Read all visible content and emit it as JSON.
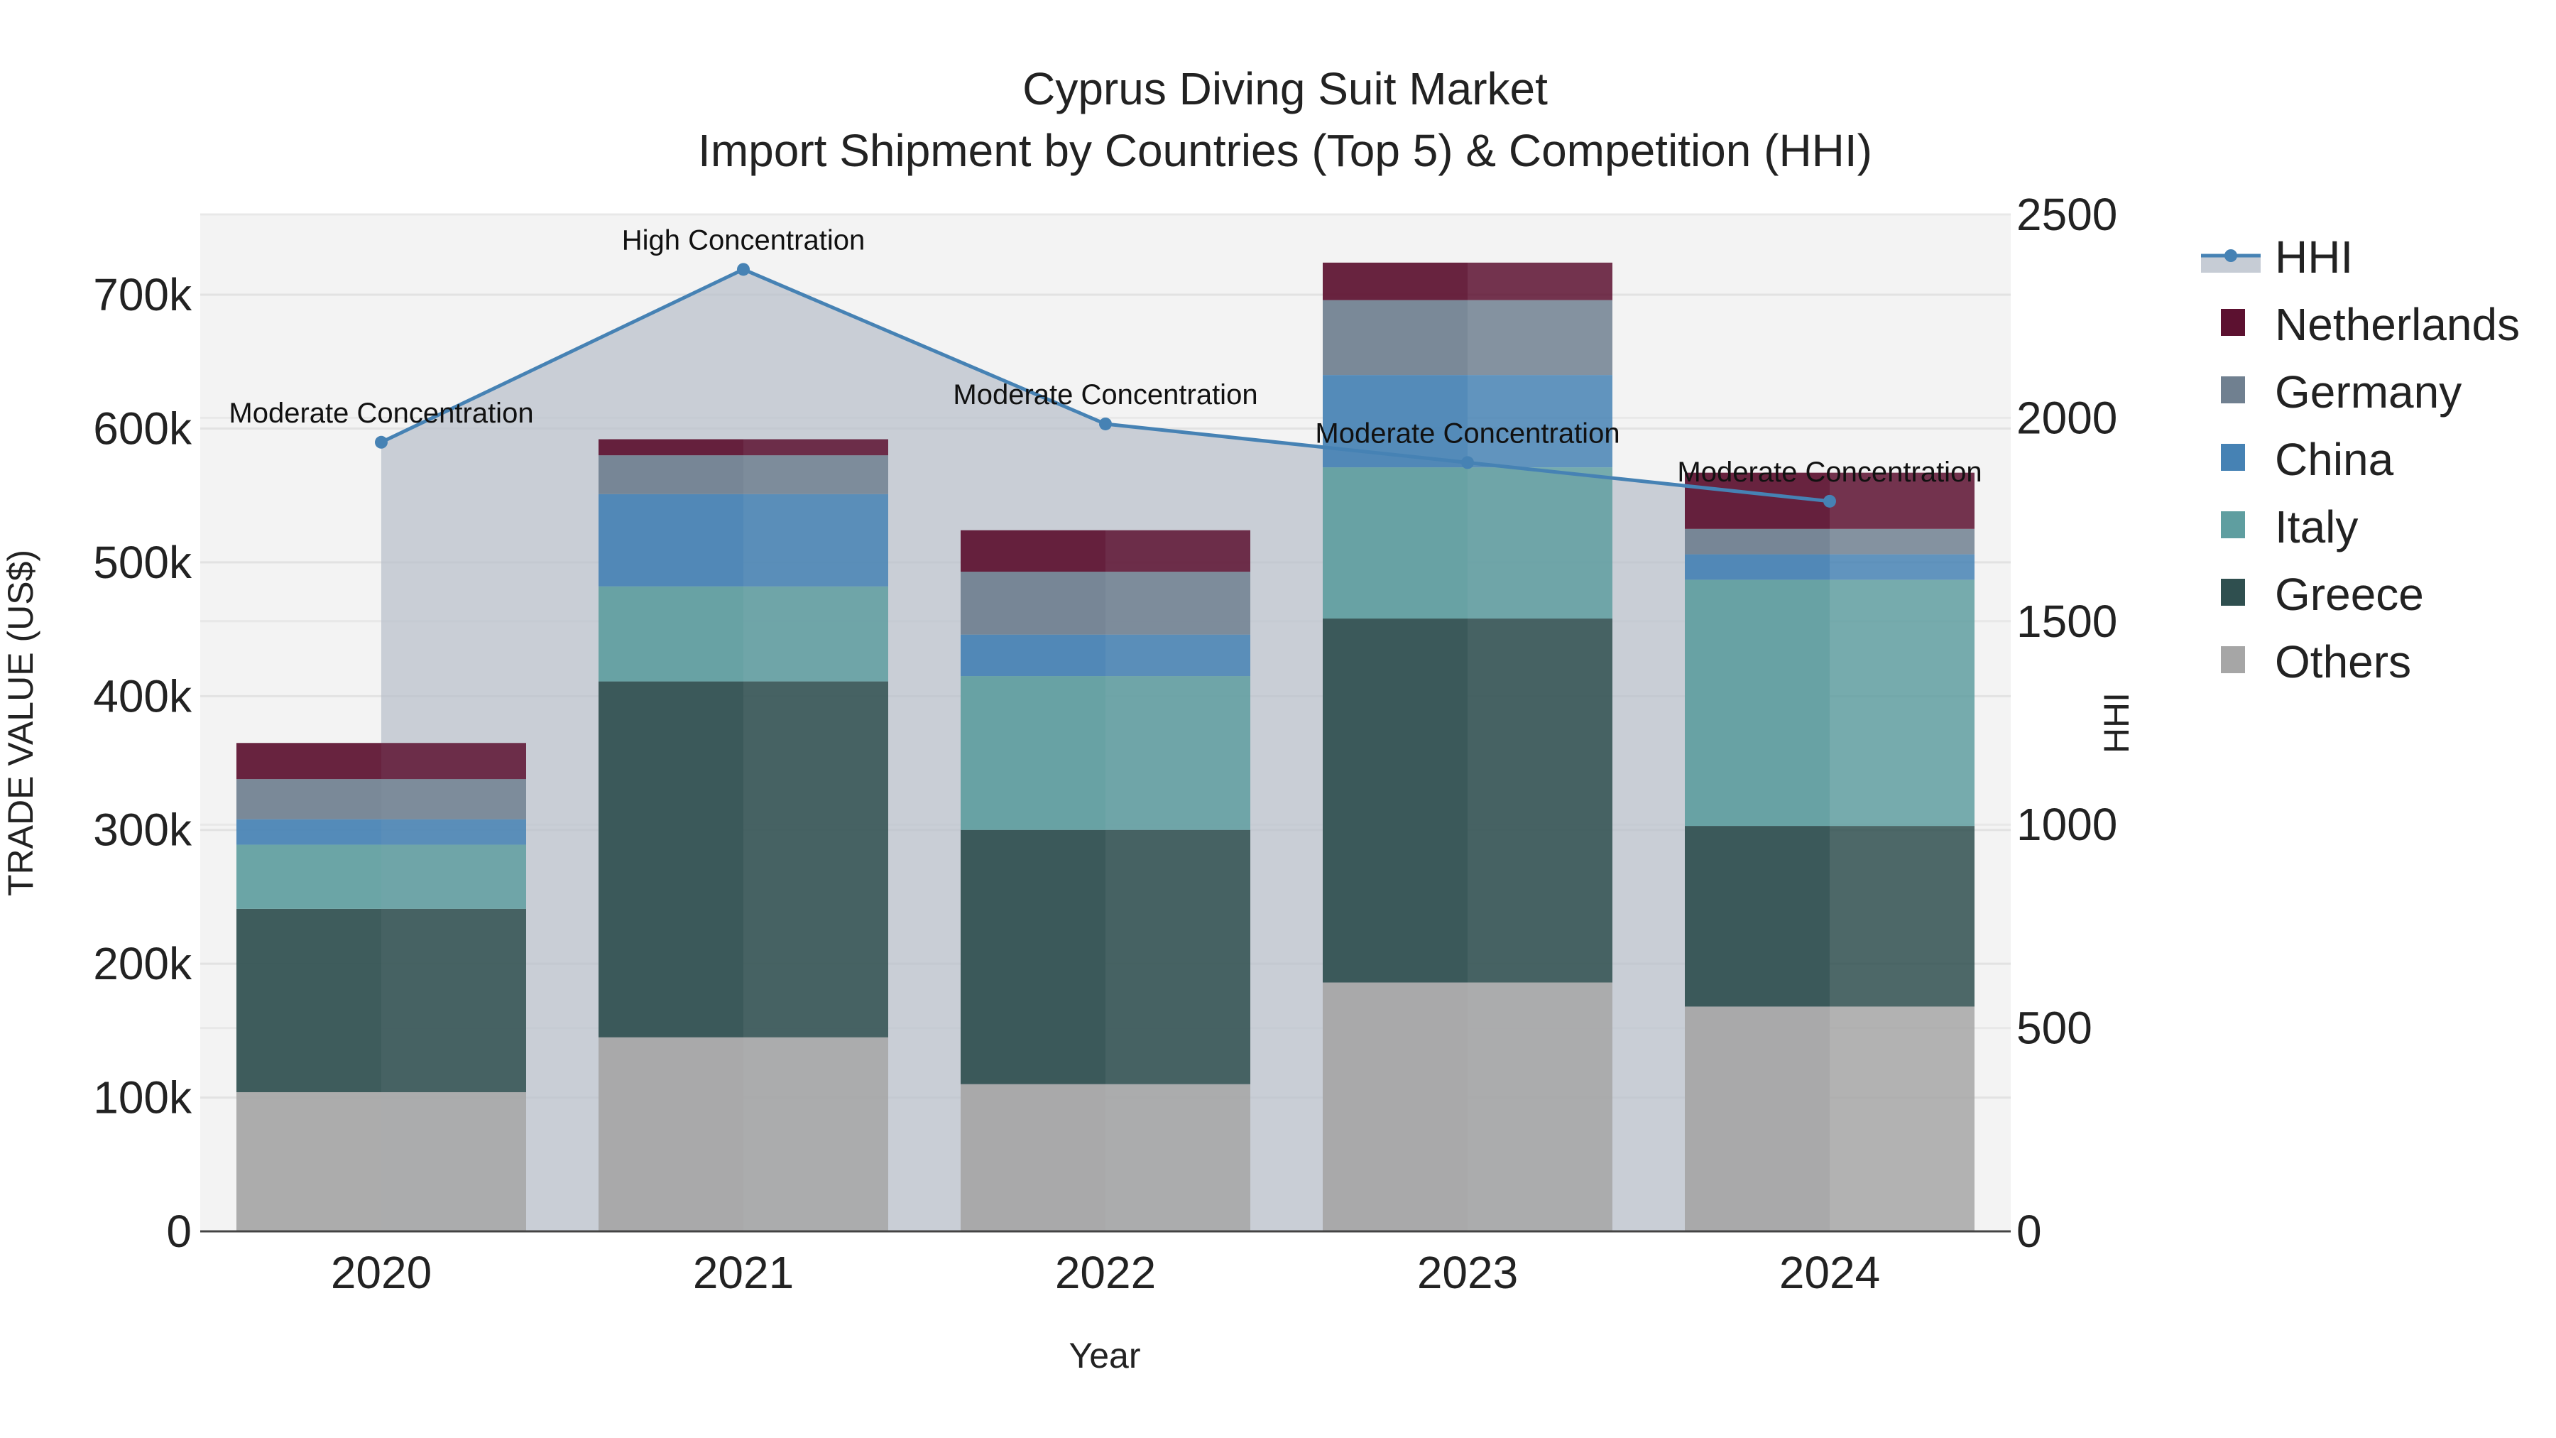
{
  "chart_data": {
    "type": "bar",
    "title_line1": "Cyprus Diving Suit Market",
    "title_line2": "Import Shipment by Countries (Top 5) & Competition (HHI)",
    "xlabel": "Year",
    "ylabel": "TRADE VALUE (US$)",
    "y2label": "HHI",
    "categories": [
      "2020",
      "2021",
      "2022",
      "2023",
      "2024"
    ],
    "ylim": [
      0,
      760000
    ],
    "y2lim": [
      0,
      2500
    ],
    "yticks": [
      {
        "value": 0,
        "label": "0"
      },
      {
        "value": 100000,
        "label": "100k"
      },
      {
        "value": 200000,
        "label": "200k"
      },
      {
        "value": 300000,
        "label": "300k"
      },
      {
        "value": 400000,
        "label": "400k"
      },
      {
        "value": 500000,
        "label": "500k"
      },
      {
        "value": 600000,
        "label": "600k"
      },
      {
        "value": 700000,
        "label": "700k"
      }
    ],
    "y2ticks": [
      {
        "value": 0,
        "label": "0"
      },
      {
        "value": 500,
        "label": "500"
      },
      {
        "value": 1000,
        "label": "1000"
      },
      {
        "value": 1500,
        "label": "1500"
      },
      {
        "value": 2000,
        "label": "2000"
      },
      {
        "value": 2500,
        "label": "2500"
      }
    ],
    "series": [
      {
        "name": "Others",
        "color": "#a6a6a6",
        "values": [
          104000,
          145000,
          110000,
          186000,
          168000
        ]
      },
      {
        "name": "Greece",
        "color": "#2f4f4f",
        "values": [
          137000,
          266000,
          190000,
          272000,
          135000
        ]
      },
      {
        "name": "Italy",
        "color": "#5f9ea0",
        "values": [
          48000,
          71000,
          115000,
          113000,
          184000
        ]
      },
      {
        "name": "China",
        "color": "#4682b4",
        "values": [
          19000,
          69000,
          31000,
          69000,
          19000
        ]
      },
      {
        "name": "Germany",
        "color": "#708090",
        "values": [
          30000,
          29000,
          47000,
          56000,
          19000
        ]
      },
      {
        "name": "Netherlands",
        "color": "#5c1130",
        "values": [
          27000,
          12000,
          31000,
          28000,
          42000
        ]
      }
    ],
    "hhi": {
      "name": "HHI",
      "color": "#4682b4",
      "values": [
        1940,
        2365,
        1985,
        1890,
        1795
      ],
      "annotations": [
        "Moderate Concentration",
        "High Concentration",
        "Moderate Concentration",
        "Moderate Concentration",
        "Moderate Concentration"
      ]
    },
    "legend_position": "right",
    "legend_order": [
      "HHI",
      "Netherlands",
      "Germany",
      "China",
      "Italy",
      "Greece",
      "Others"
    ]
  }
}
